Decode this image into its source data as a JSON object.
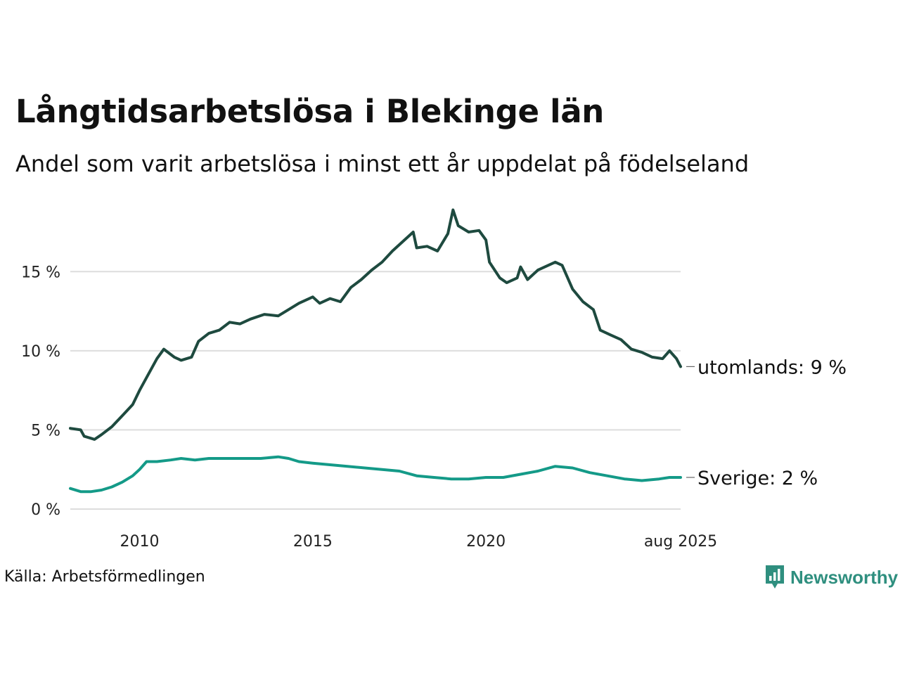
{
  "colors": {
    "utomlands": "#1e4a3f",
    "sverige": "#149a88",
    "grid": "#dddddd",
    "brand": "#2f8f7f"
  },
  "header": {
    "title": "Långtidsarbetslösa i Blekinge län",
    "subtitle": "Andel som varit arbetslösa i minst ett år uppdelat på födelseland"
  },
  "footer": {
    "source": "Källa: Arbetsförmedlingen",
    "brand": "Newsworthy",
    "brand_icon": "bar-chart-icon"
  },
  "chart_data": {
    "type": "line",
    "x_unit": "year",
    "xlim": [
      2008.0,
      2025.62
    ],
    "ylim": [
      0,
      19.5
    ],
    "y_ticks": [
      {
        "value": 0,
        "label": "0 %"
      },
      {
        "value": 5,
        "label": "5 %"
      },
      {
        "value": 10,
        "label": "10 %"
      },
      {
        "value": 15,
        "label": "15 %"
      }
    ],
    "x_ticks": [
      {
        "value": 2010,
        "label": "2010"
      },
      {
        "value": 2015,
        "label": "2015"
      },
      {
        "value": 2020,
        "label": "2020"
      },
      {
        "value": 2025.62,
        "label": "aug 2025"
      }
    ],
    "grid": true,
    "legend": "none",
    "series": [
      {
        "name": "utomlands",
        "end_label": "utomlands: 9 %",
        "color_key": "utomlands",
        "points": [
          [
            2008.0,
            5.1
          ],
          [
            2008.3,
            5.0
          ],
          [
            2008.4,
            4.6
          ],
          [
            2008.7,
            4.4
          ],
          [
            2008.9,
            4.7
          ],
          [
            2009.2,
            5.2
          ],
          [
            2009.5,
            5.9
          ],
          [
            2009.8,
            6.6
          ],
          [
            2010.0,
            7.5
          ],
          [
            2010.2,
            8.3
          ],
          [
            2010.5,
            9.5
          ],
          [
            2010.7,
            10.1
          ],
          [
            2011.0,
            9.6
          ],
          [
            2011.2,
            9.4
          ],
          [
            2011.5,
            9.6
          ],
          [
            2011.7,
            10.6
          ],
          [
            2012.0,
            11.1
          ],
          [
            2012.3,
            11.3
          ],
          [
            2012.6,
            11.8
          ],
          [
            2012.9,
            11.7
          ],
          [
            2013.2,
            12.0
          ],
          [
            2013.6,
            12.3
          ],
          [
            2014.0,
            12.2
          ],
          [
            2014.3,
            12.6
          ],
          [
            2014.6,
            13.0
          ],
          [
            2015.0,
            13.4
          ],
          [
            2015.2,
            13.0
          ],
          [
            2015.5,
            13.3
          ],
          [
            2015.8,
            13.1
          ],
          [
            2016.1,
            14.0
          ],
          [
            2016.4,
            14.5
          ],
          [
            2016.7,
            15.1
          ],
          [
            2017.0,
            15.6
          ],
          [
            2017.3,
            16.3
          ],
          [
            2017.6,
            16.9
          ],
          [
            2017.9,
            17.5
          ],
          [
            2018.0,
            16.5
          ],
          [
            2018.3,
            16.6
          ],
          [
            2018.6,
            16.3
          ],
          [
            2018.9,
            17.4
          ],
          [
            2019.05,
            18.9
          ],
          [
            2019.2,
            17.9
          ],
          [
            2019.5,
            17.5
          ],
          [
            2019.8,
            17.6
          ],
          [
            2020.0,
            17.0
          ],
          [
            2020.1,
            15.6
          ],
          [
            2020.4,
            14.6
          ],
          [
            2020.6,
            14.3
          ],
          [
            2020.9,
            14.6
          ],
          [
            2021.0,
            15.3
          ],
          [
            2021.2,
            14.5
          ],
          [
            2021.5,
            15.1
          ],
          [
            2021.8,
            15.4
          ],
          [
            2022.0,
            15.6
          ],
          [
            2022.2,
            15.4
          ],
          [
            2022.5,
            13.9
          ],
          [
            2022.8,
            13.1
          ],
          [
            2023.1,
            12.6
          ],
          [
            2023.3,
            11.3
          ],
          [
            2023.6,
            11.0
          ],
          [
            2023.9,
            10.7
          ],
          [
            2024.2,
            10.1
          ],
          [
            2024.5,
            9.9
          ],
          [
            2024.8,
            9.6
          ],
          [
            2025.1,
            9.5
          ],
          [
            2025.3,
            10.0
          ],
          [
            2025.5,
            9.5
          ],
          [
            2025.62,
            9.0
          ]
        ]
      },
      {
        "name": "Sverige",
        "end_label": "Sverige: 2 %",
        "color_key": "sverige",
        "points": [
          [
            2008.0,
            1.3
          ],
          [
            2008.3,
            1.1
          ],
          [
            2008.6,
            1.1
          ],
          [
            2008.9,
            1.2
          ],
          [
            2009.2,
            1.4
          ],
          [
            2009.5,
            1.7
          ],
          [
            2009.8,
            2.1
          ],
          [
            2010.0,
            2.5
          ],
          [
            2010.2,
            3.0
          ],
          [
            2010.5,
            3.0
          ],
          [
            2010.9,
            3.1
          ],
          [
            2011.2,
            3.2
          ],
          [
            2011.6,
            3.1
          ],
          [
            2012.0,
            3.2
          ],
          [
            2012.5,
            3.2
          ],
          [
            2013.0,
            3.2
          ],
          [
            2013.5,
            3.2
          ],
          [
            2014.0,
            3.3
          ],
          [
            2014.3,
            3.2
          ],
          [
            2014.6,
            3.0
          ],
          [
            2015.0,
            2.9
          ],
          [
            2015.5,
            2.8
          ],
          [
            2016.0,
            2.7
          ],
          [
            2016.5,
            2.6
          ],
          [
            2017.0,
            2.5
          ],
          [
            2017.5,
            2.4
          ],
          [
            2018.0,
            2.1
          ],
          [
            2018.5,
            2.0
          ],
          [
            2019.0,
            1.9
          ],
          [
            2019.5,
            1.9
          ],
          [
            2020.0,
            2.0
          ],
          [
            2020.5,
            2.0
          ],
          [
            2021.0,
            2.2
          ],
          [
            2021.5,
            2.4
          ],
          [
            2022.0,
            2.7
          ],
          [
            2022.5,
            2.6
          ],
          [
            2023.0,
            2.3
          ],
          [
            2023.5,
            2.1
          ],
          [
            2024.0,
            1.9
          ],
          [
            2024.5,
            1.8
          ],
          [
            2025.0,
            1.9
          ],
          [
            2025.3,
            2.0
          ],
          [
            2025.62,
            2.0
          ]
        ]
      }
    ]
  }
}
